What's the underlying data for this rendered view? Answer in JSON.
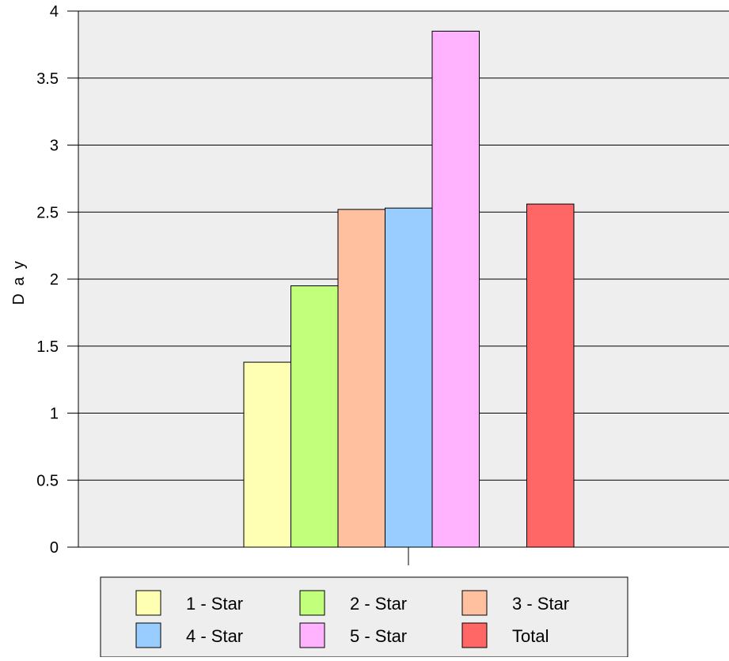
{
  "chart_data": {
    "type": "bar",
    "title": "",
    "xlabel": "",
    "ylabel": "Day",
    "ylim": [
      0,
      4
    ],
    "ytick_step": 0.5,
    "yticks": [
      "0",
      "0.5",
      "1",
      "1.5",
      "2",
      "2.5",
      "3",
      "3.5",
      "4"
    ],
    "grid": true,
    "legend_placement": "bottom",
    "series": [
      {
        "name": "1 - Star",
        "value": 1.38,
        "color": "#ffffb3"
      },
      {
        "name": "2 - Star",
        "value": 1.95,
        "color": "#c2ff7a"
      },
      {
        "name": "3 - Star",
        "value": 2.52,
        "color": "#ffc0a0"
      },
      {
        "name": "4 - Star",
        "value": 2.53,
        "color": "#99ccff"
      },
      {
        "name": "5 - Star",
        "value": 3.85,
        "color": "#ffb3ff"
      },
      {
        "name": "Total",
        "value": 2.56,
        "color": "#ff6666"
      }
    ],
    "plot_background": "#eeeeee"
  }
}
